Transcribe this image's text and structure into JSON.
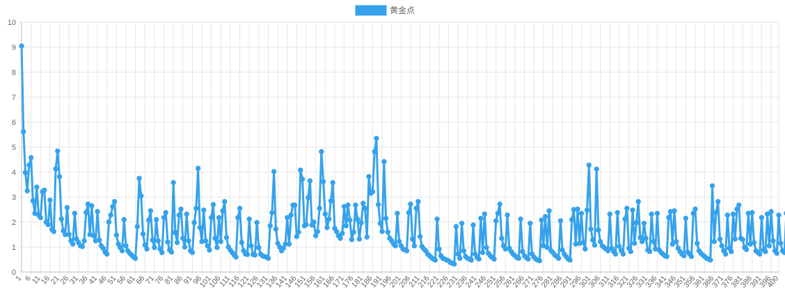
{
  "chart_data": {
    "type": "line",
    "title": "",
    "xlabel": "",
    "ylabel": "",
    "ylim": [
      0,
      10
    ],
    "y_ticks": [
      0,
      1,
      2,
      3,
      4,
      5,
      6,
      7,
      8,
      9,
      10
    ],
    "x_range": [
      1,
      400
    ],
    "x_tick_start": 1,
    "x_tick_step": 5,
    "x_tick_last": 400,
    "grid": true,
    "legend_position": "top",
    "colors": {
      "series": "#36a2eb",
      "grid": "#e6e6e6",
      "axis": "#bbbbbb",
      "text": "#666666"
    },
    "series": [
      {
        "name": "黄金点",
        "values": [
          9.05,
          5.62,
          3.98,
          3.25,
          4.28,
          4.58,
          2.85,
          2.35,
          3.4,
          2.28,
          2.18,
          3.22,
          3.28,
          2.0,
          1.9,
          2.88,
          1.7,
          1.62,
          4.13,
          4.84,
          3.82,
          2.12,
          1.65,
          1.5,
          2.58,
          1.5,
          1.25,
          1.12,
          2.35,
          1.32,
          1.18,
          1.05,
          1.02,
          1.25,
          2.38,
          2.72,
          1.5,
          2.65,
          1.45,
          1.25,
          2.42,
          1.28,
          1.05,
          0.95,
          0.8,
          0.72,
          2.0,
          2.28,
          2.62,
          2.82,
          1.48,
          1.12,
          0.98,
          0.85,
          2.1,
          1.05,
          0.85,
          0.75,
          0.68,
          0.6,
          0.55,
          1.82,
          3.75,
          3.05,
          1.52,
          1.08,
          0.92,
          2.08,
          2.45,
          1.28,
          0.98,
          2.1,
          1.25,
          0.92,
          0.78,
          2.18,
          2.38,
          1.2,
          0.88,
          0.8,
          3.58,
          1.58,
          1.18,
          2.28,
          2.52,
          1.35,
          1.0,
          2.32,
          1.25,
          0.85,
          0.78,
          1.98,
          2.55,
          4.15,
          1.78,
          1.22,
          2.48,
          1.25,
          1.05,
          0.88,
          2.18,
          2.7,
          1.35,
          0.98,
          2.18,
          1.22,
          2.45,
          2.82,
          1.38,
          1.0,
          0.88,
          0.78,
          0.68,
          0.6,
          2.18,
          2.55,
          1.18,
          0.85,
          0.72,
          0.7,
          2.12,
          1.05,
          0.7,
          0.68,
          1.98,
          0.98,
          0.72,
          0.65,
          0.62,
          0.6,
          0.55,
          1.85,
          2.38,
          4.02,
          1.72,
          1.15,
          1.0,
          0.85,
          0.95,
          1.12,
          2.18,
          1.12,
          2.28,
          2.68,
          2.68,
          1.42,
          1.6,
          4.08,
          3.72,
          1.85,
          1.9,
          2.98,
          3.65,
          1.88,
          2.0,
          1.45,
          1.62,
          2.55,
          4.82,
          3.62,
          2.32,
          1.78,
          2.12,
          2.85,
          3.58,
          1.75,
          1.62,
          1.45,
          1.35,
          1.55,
          2.62,
          1.85,
          2.68,
          2.08,
          1.3,
          1.6,
          2.68,
          2.12,
          1.32,
          1.98,
          2.75,
          2.55,
          1.4,
          3.82,
          3.15,
          3.22,
          4.82,
          5.35,
          2.7,
          1.95,
          1.62,
          4.42,
          2.15,
          1.6,
          1.35,
          1.25,
          1.12,
          1.05,
          2.35,
          1.22,
          1.05,
          0.92,
          0.88,
          0.85,
          2.38,
          2.72,
          1.32,
          1.05,
          2.55,
          2.82,
          1.42,
          1.02,
          0.92,
          0.85,
          0.72,
          0.65,
          0.58,
          0.52,
          0.48,
          2.12,
          0.92,
          0.65,
          0.55,
          0.52,
          0.48,
          0.45,
          0.38,
          0.35,
          0.32,
          1.82,
          0.72,
          0.55,
          1.95,
          0.85,
          0.62,
          0.55,
          0.52,
          0.48,
          1.88,
          0.72,
          0.58,
          0.52,
          2.15,
          0.78,
          2.32,
          0.98,
          0.75,
          0.65,
          0.58,
          0.52,
          2.05,
          2.35,
          2.72,
          1.35,
          1.05,
          0.92,
          2.28,
          0.95,
          0.82,
          0.72,
          0.65,
          0.58,
          0.55,
          2.12,
          0.82,
          0.65,
          0.58,
          0.52,
          1.95,
          0.72,
          0.6,
          0.52,
          0.48,
          0.45,
          2.08,
          1.05,
          2.22,
          0.98,
          2.45,
          0.85,
          0.78,
          0.68,
          0.62,
          0.55,
          2.05,
          0.88,
          0.72,
          0.62,
          0.52,
          0.48,
          2.1,
          2.5,
          1.12,
          2.52,
          1.15,
          2.35,
          1.18,
          0.92,
          2.48,
          4.28,
          1.72,
          1.28,
          1.08,
          4.12,
          1.68,
          1.22,
          1.05,
          0.98,
          0.92,
          0.85,
          2.32,
          0.95,
          0.82,
          0.72,
          2.38,
          1.02,
          0.85,
          0.72,
          2.12,
          2.55,
          0.95,
          0.82,
          2.48,
          1.15,
          1.98,
          2.82,
          1.38,
          1.22,
          1.95,
          1.35,
          0.88,
          0.82,
          2.32,
          1.22,
          0.92,
          2.35,
          0.88,
          0.78,
          0.72,
          0.65,
          0.62,
          2.18,
          2.42,
          1.12,
          2.45,
          1.22,
          0.95,
          0.82,
          0.72,
          0.65,
          2.15,
          0.8,
          0.72,
          0.62,
          2.35,
          2.52,
          1.15,
          0.85,
          0.75,
          0.68,
          0.62,
          0.55,
          0.52,
          0.48,
          3.45,
          1.22,
          2.38,
          2.82,
          1.32,
          1.05,
          0.85,
          0.72,
          2.28,
          0.95,
          0.82,
          2.32,
          1.32,
          2.52,
          2.68,
          1.35,
          1.3,
          0.98,
          0.9,
          2.35,
          1.12,
          2.38,
          1.18,
          0.85,
          0.78,
          0.72,
          2.18,
          0.88,
          0.82,
          2.32,
          1.05,
          2.42,
          1.25,
          0.85,
          0.75,
          2.28,
          1.15,
          0.85,
          0.78,
          2.35,
          1.12,
          0.95,
          0.82,
          0.75,
          2.15,
          2.62,
          1.2,
          2.32,
          1.2,
          0.92
        ]
      }
    ]
  }
}
